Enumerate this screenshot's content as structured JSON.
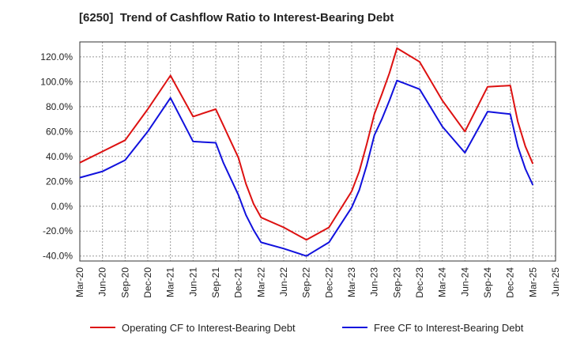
{
  "chart_data": {
    "type": "line",
    "title": "[6250]  Trend of Cashflow Ratio to Interest-Bearing Debt",
    "xlabel": "",
    "ylabel": "",
    "x_ticks": [
      "Mar-20",
      "Jun-20",
      "Sep-20",
      "Dec-20",
      "Mar-21",
      "Jun-21",
      "Sep-21",
      "Dec-21",
      "Mar-22",
      "Jun-22",
      "Sep-22",
      "Dec-22",
      "Mar-23",
      "Jun-23",
      "Sep-23",
      "Dec-23",
      "Mar-24",
      "Jun-24",
      "Sep-24",
      "Dec-24",
      "Mar-25",
      "Jun-25"
    ],
    "y_ticks": [
      -40,
      -20,
      0,
      20,
      40,
      60,
      80,
      100,
      120
    ],
    "y_tick_labels": [
      "-40.0%",
      "-20.0%",
      "0.0%",
      "20.0%",
      "40.0%",
      "60.0%",
      "80.0%",
      "100.0%",
      "120.0%"
    ],
    "ylim": [
      -44,
      132
    ],
    "grid": true,
    "legend_position": "bottom",
    "series": [
      {
        "name": "Operating CF to Interest-Bearing Debt",
        "color": "#dd1111",
        "x": [
          "Mar-20",
          "Jun-20",
          "Sep-20",
          "Dec-20",
          "Mar-21",
          "Jun-21",
          "Sep-21",
          "Oct-21",
          "Nov-21",
          "Dec-21",
          "Jan-22",
          "Feb-22",
          "Mar-22",
          "Jun-22",
          "Sep-22",
          "Dec-22",
          "Mar-23",
          "Apr-23",
          "May-23",
          "Jun-23",
          "Jul-23",
          "Aug-23",
          "Sep-23",
          "Dec-23",
          "Mar-24",
          "Jun-24",
          "Sep-24",
          "Dec-24",
          "Jan-25",
          "Feb-25",
          "Mar-25"
        ],
        "values": [
          35,
          44,
          53,
          78,
          105,
          72,
          78,
          65,
          52,
          39,
          18,
          2,
          -9,
          -17,
          -27,
          -17,
          12,
          28,
          50,
          74,
          90,
          107,
          127,
          116,
          85,
          60,
          96,
          97,
          68,
          48,
          34
        ]
      },
      {
        "name": "Free CF to Interest-Bearing Debt",
        "color": "#1111dd",
        "x": [
          "Mar-20",
          "Jun-20",
          "Sep-20",
          "Dec-20",
          "Mar-21",
          "Jun-21",
          "Sep-21",
          "Oct-21",
          "Nov-21",
          "Dec-21",
          "Jan-22",
          "Feb-22",
          "Mar-22",
          "Jun-22",
          "Sep-22",
          "Dec-22",
          "Mar-23",
          "Apr-23",
          "May-23",
          "Jun-23",
          "Jul-23",
          "Aug-23",
          "Sep-23",
          "Dec-23",
          "Mar-24",
          "Jun-24",
          "Sep-24",
          "Dec-24",
          "Jan-25",
          "Feb-25",
          "Mar-25"
        ],
        "values": [
          23,
          28,
          37,
          60,
          87,
          52,
          51,
          35,
          22,
          9,
          -7,
          -19,
          -29,
          -34,
          -40,
          -29,
          -1,
          13,
          33,
          57,
          70,
          85,
          101,
          94,
          64,
          43,
          76,
          74,
          48,
          30,
          17
        ]
      }
    ]
  }
}
